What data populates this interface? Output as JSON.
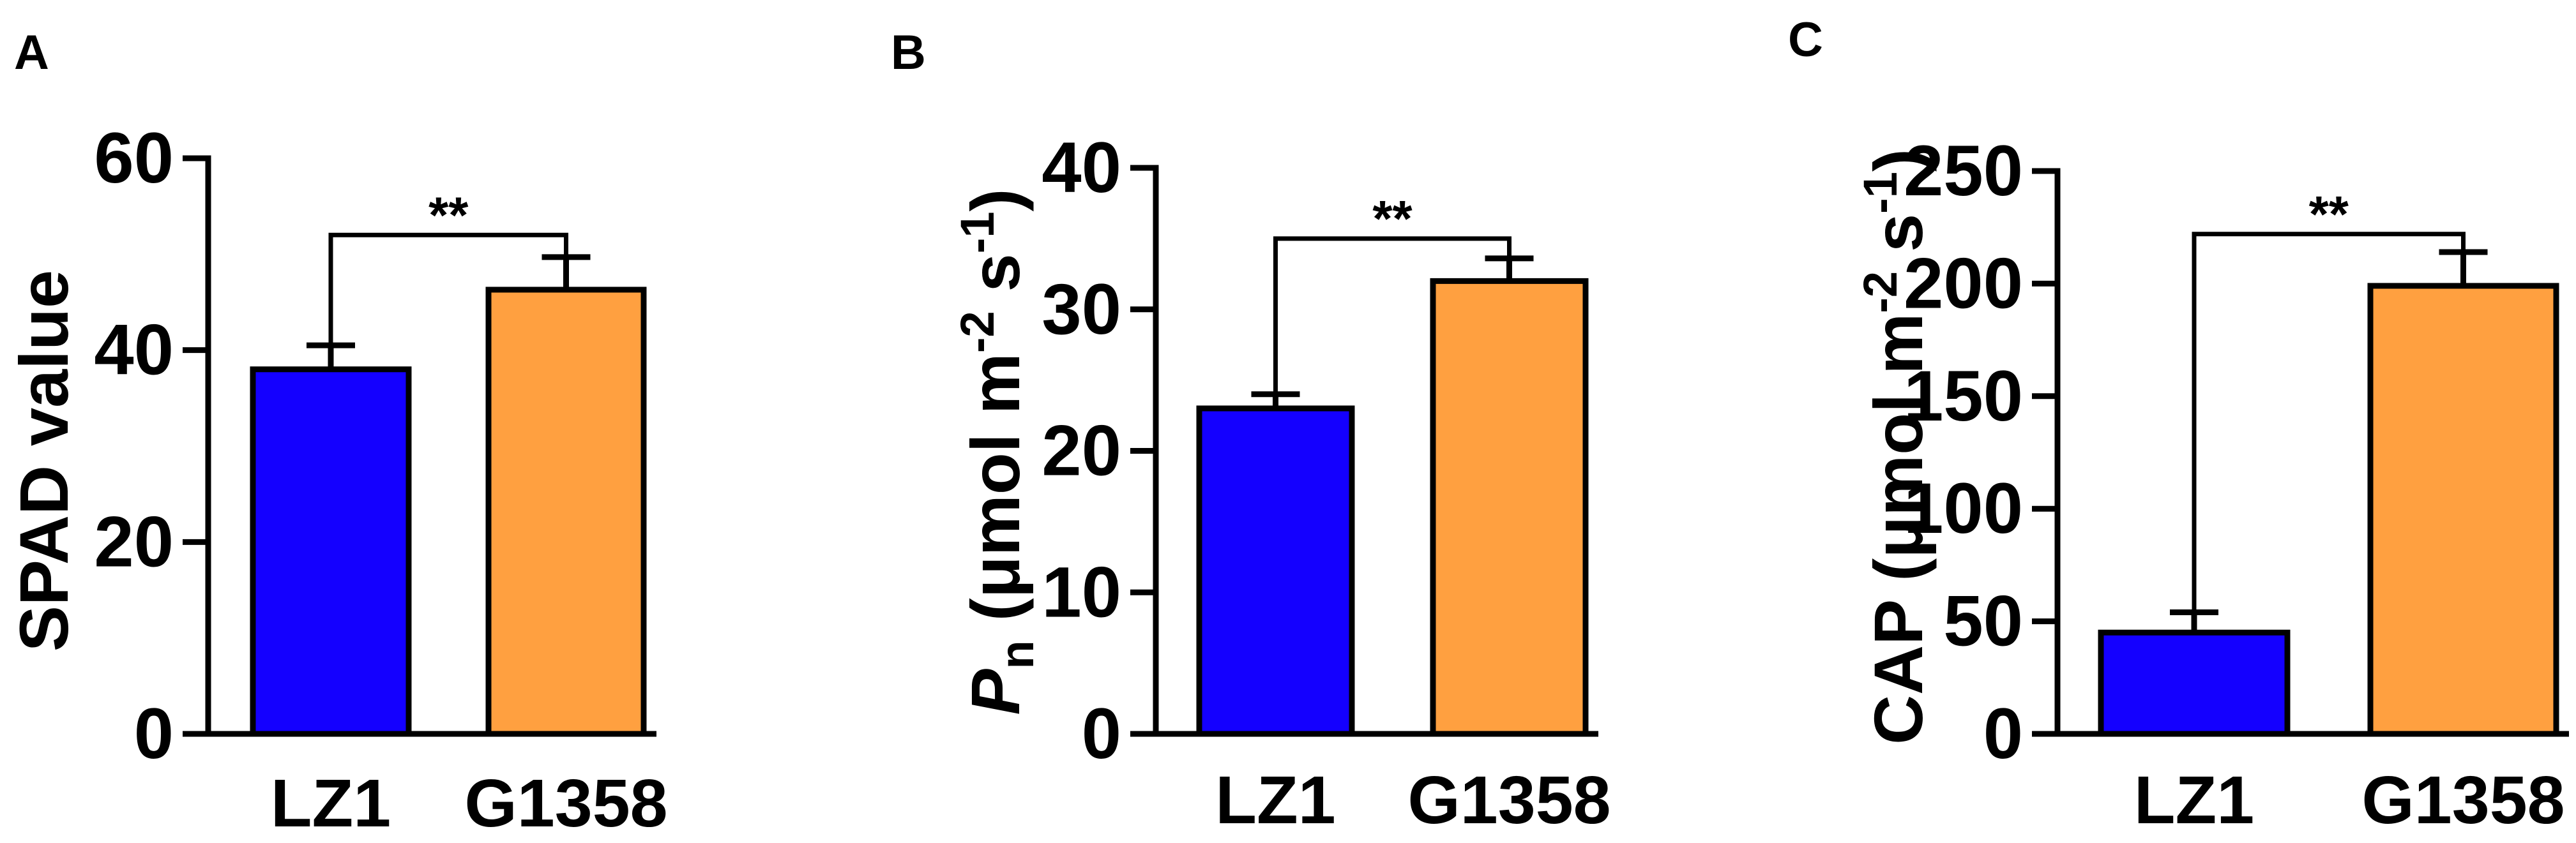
{
  "colors": {
    "lz1": "#1400ff",
    "g1358": "#ffa040",
    "ink": "#000000"
  },
  "chart_data": [
    {
      "type": "bar",
      "panel": "A",
      "categories": [
        "LZ1",
        "G1358"
      ],
      "values": [
        38,
        46.3
      ],
      "errors": [
        2.5,
        3.4
      ],
      "ylim": [
        0,
        60
      ],
      "yticks": [
        0,
        20,
        40,
        60
      ],
      "ytick_labels": [
        "0",
        "20",
        "40",
        "60"
      ],
      "ylabel": "SPAD value",
      "significance": "**",
      "bracket_y": 52,
      "grid": false
    },
    {
      "type": "bar",
      "panel": "B",
      "categories": [
        "LZ1",
        "G1358"
      ],
      "values": [
        23,
        32
      ],
      "errors": [
        1.0,
        1.6
      ],
      "ylim": [
        0,
        40
      ],
      "yticks": [
        0,
        10,
        20,
        30,
        40
      ],
      "ytick_labels": [
        "0",
        "10",
        "20",
        "30",
        "40"
      ],
      "ylabel": "Pn (μmol m-2 s-1)",
      "ylabel_parts": [
        "P",
        "n",
        " (μmol m",
        "-2",
        " s",
        "-1",
        ")"
      ],
      "significance": "**",
      "bracket_y": 35,
      "grid": false
    },
    {
      "type": "bar",
      "panel": "C",
      "categories": [
        "LZ1",
        "G1358"
      ],
      "values": [
        45,
        199
      ],
      "errors": [
        9,
        15
      ],
      "ylim": [
        0,
        250
      ],
      "yticks": [
        0,
        50,
        100,
        150,
        200,
        250
      ],
      "ytick_labels": [
        "0",
        "50",
        "100",
        "150",
        "200",
        "250"
      ],
      "ylabel": "CAP (μmol m-2 s-1)",
      "ylabel_parts": [
        "CAP (μmol m",
        "-2",
        " s",
        "-1",
        ")"
      ],
      "significance": "**",
      "bracket_y": 222,
      "grid": false
    }
  ]
}
